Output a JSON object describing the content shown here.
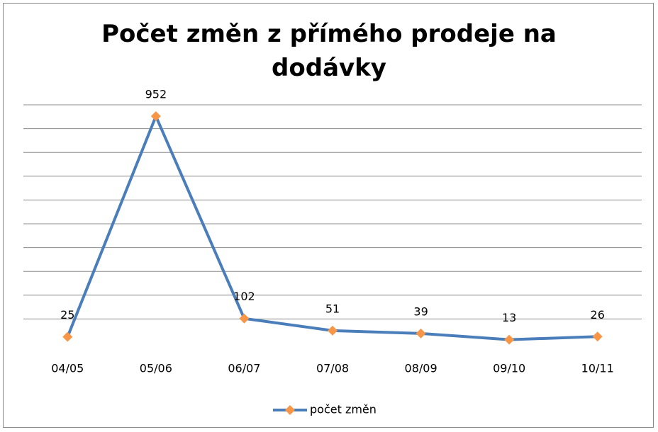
{
  "chart_data": {
    "type": "line",
    "title": "Počet změn z přímého prodeje na dodávky",
    "categories": [
      "04/05",
      "05/06",
      "06/07",
      "07/08",
      "08/09",
      "09/10",
      "10/11"
    ],
    "series": [
      {
        "name": "počet změn",
        "color": "#4a7ebb",
        "marker_color": "#f79646",
        "values": [
          25,
          952,
          102,
          51,
          39,
          13,
          26
        ]
      }
    ],
    "ylim": [
      0,
      1000
    ],
    "yticks": [
      100,
      200,
      300,
      400,
      500,
      600,
      700,
      800,
      900,
      1000
    ],
    "grid": true,
    "legend": "bottom"
  }
}
